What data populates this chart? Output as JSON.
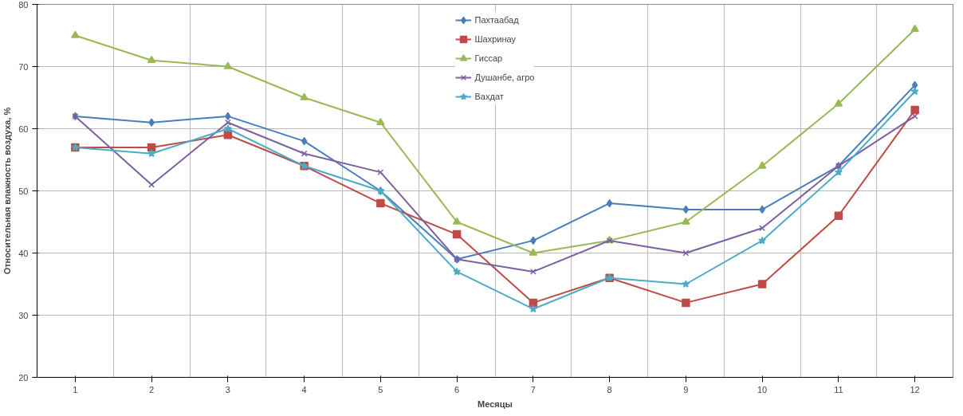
{
  "chart_data": {
    "type": "line",
    "xlabel": "Месяцы",
    "ylabel": "Относительная влажность воздуха, %",
    "categories": [
      "1",
      "2",
      "3",
      "4",
      "5",
      "6",
      "7",
      "8",
      "9",
      "10",
      "11",
      "12"
    ],
    "ylim": [
      20,
      80
    ],
    "yticks": [
      20,
      30,
      40,
      50,
      60,
      70,
      80
    ],
    "grid": true,
    "legend": "top",
    "series": [
      {
        "name": "Пахтаабад",
        "color": "#4a7ebb",
        "marker": "diamond",
        "values": [
          62,
          61,
          62,
          58,
          50,
          39,
          42,
          48,
          47,
          47,
          54,
          67
        ]
      },
      {
        "name": "Шахринау",
        "color": "#be4b48",
        "marker": "square",
        "values": [
          57,
          57,
          59,
          54,
          48,
          43,
          32,
          36,
          32,
          35,
          46,
          63
        ]
      },
      {
        "name": "Гиссар",
        "color": "#98b954",
        "marker": "triangle",
        "values": [
          75,
          71,
          70,
          65,
          61,
          45,
          40,
          42,
          45,
          54,
          64,
          76
        ]
      },
      {
        "name": "Душанбе, агро",
        "color": "#7d60a0",
        "marker": "cross",
        "values": [
          62,
          51,
          61,
          56,
          53,
          39,
          37,
          42,
          40,
          44,
          54,
          62
        ]
      },
      {
        "name": "Вахдат",
        "color": "#4bacc6",
        "marker": "star",
        "values": [
          57,
          56,
          60,
          54,
          50,
          37,
          31,
          36,
          35,
          42,
          53,
          66
        ]
      }
    ]
  }
}
